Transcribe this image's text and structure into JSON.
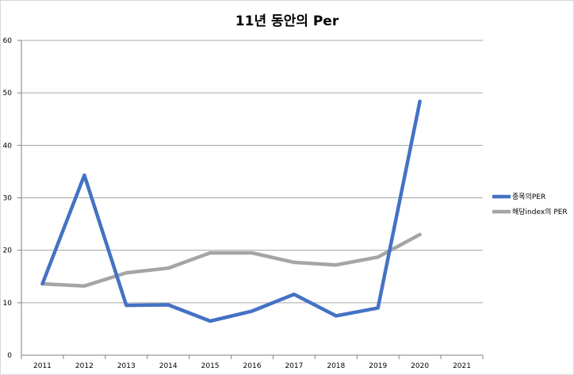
{
  "chart_data": {
    "type": "line",
    "title": "11년 동안의 Per",
    "xlabel": "",
    "ylabel": "",
    "x": [
      "2011",
      "2012",
      "2013",
      "2014",
      "2015",
      "2016",
      "2017",
      "2018",
      "2019",
      "2020",
      "2021"
    ],
    "ylim": [
      0,
      60
    ],
    "yticks": [
      "0",
      "10",
      "20",
      "30",
      "40",
      "50",
      "60"
    ],
    "grid": true,
    "legend_position": "right",
    "series": [
      {
        "name": "종목의PER",
        "color": "#4472C4",
        "values": [
          13.6,
          34.3,
          9.5,
          9.6,
          6.5,
          8.4,
          11.6,
          7.5,
          9.0,
          48.4,
          null
        ]
      },
      {
        "name": "해당index의 PER",
        "color": "#A5A5A5",
        "values": [
          13.6,
          13.2,
          15.7,
          16.6,
          19.5,
          19.5,
          17.7,
          17.2,
          18.7,
          23.0,
          null
        ]
      }
    ]
  }
}
